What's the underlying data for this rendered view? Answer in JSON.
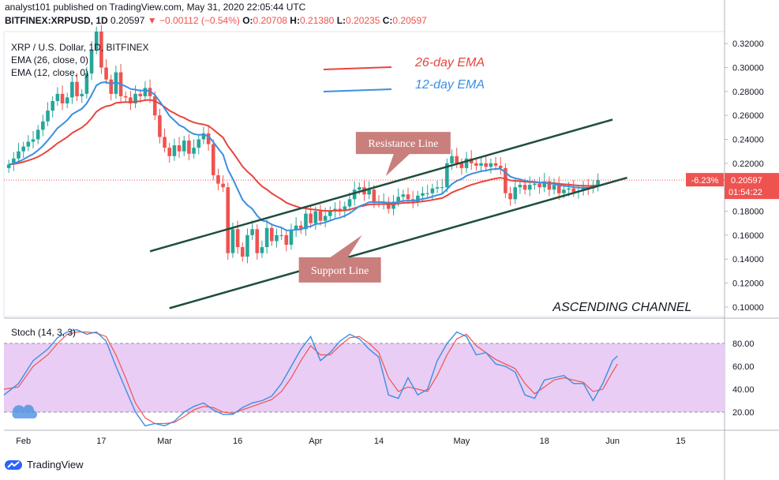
{
  "header": {
    "published": "analyst101 published on TradingView.com, May 31, 2020 22:05:44 UTC",
    "symbol": "BITFINEX:XRPUSD, 1D",
    "last": "0.20597",
    "arrow": "▼",
    "change": "−0.00112 (−0.54%)",
    "o_label": "O:",
    "o_value": "0.20708",
    "h_label": "H:",
    "h_value": "0.21380",
    "l_label": "L:",
    "l_value": "0.20235",
    "c_label": "C:",
    "c_value": "0.20597"
  },
  "footer": {
    "brand": "TradingView"
  },
  "colors": {
    "candle_up": "#26a69a",
    "candle_down": "#ef5350",
    "ema26": "#e8453c",
    "ema12": "#3b8fe0",
    "channel": "#1f4e3d",
    "stoch_k": "#3b8fe0",
    "stoch_d": "#ef5350",
    "stoch_band": "#e9cdf5",
    "label_box": "#c97f7c"
  },
  "chart_data": {
    "type": "candlestick",
    "legend": [
      "XRP / U.S. Dollar, 1D, BITFINEX",
      "EMA (26, close, 0)",
      "EMA (12, close, 0)"
    ],
    "ema_legend": [
      {
        "name": "26-day EMA",
        "color": "#e8453c"
      },
      {
        "name": "12-day EMA",
        "color": "#3b8fe0"
      }
    ],
    "price_ticks": [
      "0.32000",
      "0.30000",
      "0.28000",
      "0.26000",
      "0.24000",
      "0.22000",
      "0.20000",
      "0.18000",
      "0.16000",
      "0.14000",
      "0.12000",
      "0.10000"
    ],
    "price_range": [
      0.092,
      0.33
    ],
    "last_price_label": "0.20597",
    "last_price": 0.20597,
    "change_label": "-6.23%",
    "countdown_label": "01:54:22",
    "x_labels": [
      {
        "label": "Feb",
        "day": 4
      },
      {
        "label": "17",
        "day": 20
      },
      {
        "label": "Mar",
        "day": 33
      },
      {
        "label": "16",
        "day": 48
      },
      {
        "label": "Apr",
        "day": 64
      },
      {
        "label": "14",
        "day": 77
      },
      {
        "label": "May",
        "day": 94
      },
      {
        "label": "18",
        "day": 111
      },
      {
        "label": "Jun",
        "day": 125
      },
      {
        "label": "15",
        "day": 139
      }
    ],
    "x_range": [
      0,
      148
    ],
    "closes": [
      0.219,
      0.224,
      0.23,
      0.234,
      0.238,
      0.24,
      0.248,
      0.255,
      0.264,
      0.272,
      0.278,
      0.27,
      0.275,
      0.288,
      0.276,
      0.278,
      0.295,
      0.315,
      0.33,
      0.3,
      0.29,
      0.278,
      0.296,
      0.276,
      0.275,
      0.27,
      0.278,
      0.276,
      0.283,
      0.276,
      0.26,
      0.242,
      0.233,
      0.226,
      0.235,
      0.23,
      0.239,
      0.228,
      0.233,
      0.24,
      0.245,
      0.236,
      0.21,
      0.203,
      0.2,
      0.145,
      0.165,
      0.15,
      0.142,
      0.16,
      0.165,
      0.145,
      0.15,
      0.166,
      0.155,
      0.16,
      0.16,
      0.152,
      0.164,
      0.168,
      0.165,
      0.178,
      0.17,
      0.18,
      0.172,
      0.176,
      0.18,
      0.182,
      0.18,
      0.184,
      0.19,
      0.198,
      0.2,
      0.194,
      0.198,
      0.188,
      0.187,
      0.188,
      0.182,
      0.188,
      0.192,
      0.194,
      0.19,
      0.188,
      0.193,
      0.195,
      0.195,
      0.199,
      0.2,
      0.2,
      0.22,
      0.226,
      0.22,
      0.216,
      0.224,
      0.22,
      0.218,
      0.22,
      0.217,
      0.22,
      0.218,
      0.216,
      0.195,
      0.19,
      0.2,
      0.202,
      0.198,
      0.202,
      0.203,
      0.2,
      0.205,
      0.198,
      0.202,
      0.195,
      0.198,
      0.199,
      0.196,
      0.197,
      0.2,
      0.199,
      0.202,
      0.206
    ],
    "channel_lines": [
      {
        "name": "Resistance Line",
        "x1": 30,
        "y1": 0.1465,
        "x2": 125,
        "y2": 0.2565
      },
      {
        "name": "Support Line",
        "x1": 34,
        "y1": 0.099,
        "x2": 128,
        "y2": 0.208
      }
    ],
    "annotations": [
      {
        "text": "Resistance Line",
        "day": 82,
        "price": 0.237
      },
      {
        "text": "Support Line",
        "day": 69,
        "price": 0.131
      },
      {
        "text": "ASCENDING CHANNEL",
        "day": 127,
        "price": 0.1
      }
    ],
    "stoch": {
      "legend": "Stoch (14, 3, 3)",
      "ticks": [
        "80.00",
        "60.00",
        "40.00",
        "20.00"
      ],
      "band": [
        20,
        80
      ],
      "k_points": [
        [
          0,
          35
        ],
        [
          3,
          45
        ],
        [
          6,
          65
        ],
        [
          9,
          75
        ],
        [
          11,
          85
        ],
        [
          13,
          90
        ],
        [
          15,
          92
        ],
        [
          17,
          88
        ],
        [
          19,
          90
        ],
        [
          21,
          82
        ],
        [
          23,
          60
        ],
        [
          25,
          40
        ],
        [
          27,
          20
        ],
        [
          29,
          8
        ],
        [
          31,
          10
        ],
        [
          33,
          8
        ],
        [
          35,
          12
        ],
        [
          37,
          20
        ],
        [
          39,
          25
        ],
        [
          41,
          28
        ],
        [
          43,
          22
        ],
        [
          45,
          18
        ],
        [
          47,
          18
        ],
        [
          49,
          24
        ],
        [
          51,
          28
        ],
        [
          53,
          30
        ],
        [
          55,
          34
        ],
        [
          57,
          45
        ],
        [
          59,
          60
        ],
        [
          61,
          75
        ],
        [
          63,
          86
        ],
        [
          65,
          65
        ],
        [
          67,
          72
        ],
        [
          69,
          82
        ],
        [
          71,
          88
        ],
        [
          73,
          84
        ],
        [
          75,
          75
        ],
        [
          77,
          68
        ],
        [
          79,
          35
        ],
        [
          81,
          32
        ],
        [
          83,
          50
        ],
        [
          85,
          35
        ],
        [
          87,
          40
        ],
        [
          89,
          65
        ],
        [
          91,
          80
        ],
        [
          93,
          90
        ],
        [
          95,
          86
        ],
        [
          97,
          70
        ],
        [
          99,
          72
        ],
        [
          101,
          62
        ],
        [
          103,
          60
        ],
        [
          105,
          55
        ],
        [
          107,
          35
        ],
        [
          109,
          32
        ],
        [
          111,
          48
        ],
        [
          113,
          50
        ],
        [
          115,
          52
        ],
        [
          117,
          45
        ],
        [
          119,
          45
        ],
        [
          121,
          30
        ],
        [
          123,
          45
        ],
        [
          125,
          65
        ],
        [
          126,
          69
        ]
      ],
      "d_points": [
        [
          0,
          40
        ],
        [
          3,
          42
        ],
        [
          6,
          60
        ],
        [
          9,
          70
        ],
        [
          11,
          80
        ],
        [
          13,
          88
        ],
        [
          15,
          90
        ],
        [
          17,
          90
        ],
        [
          19,
          89
        ],
        [
          21,
          86
        ],
        [
          23,
          70
        ],
        [
          25,
          50
        ],
        [
          27,
          28
        ],
        [
          29,
          15
        ],
        [
          31,
          10
        ],
        [
          33,
          10
        ],
        [
          35,
          11
        ],
        [
          37,
          16
        ],
        [
          39,
          22
        ],
        [
          41,
          25
        ],
        [
          43,
          24
        ],
        [
          45,
          20
        ],
        [
          47,
          19
        ],
        [
          49,
          22
        ],
        [
          51,
          25
        ],
        [
          53,
          28
        ],
        [
          55,
          31
        ],
        [
          57,
          38
        ],
        [
          59,
          50
        ],
        [
          61,
          65
        ],
        [
          63,
          78
        ],
        [
          65,
          70
        ],
        [
          67,
          70
        ],
        [
          69,
          78
        ],
        [
          71,
          85
        ],
        [
          73,
          86
        ],
        [
          75,
          80
        ],
        [
          77,
          72
        ],
        [
          79,
          50
        ],
        [
          81,
          38
        ],
        [
          83,
          42
        ],
        [
          85,
          40
        ],
        [
          87,
          38
        ],
        [
          89,
          52
        ],
        [
          91,
          70
        ],
        [
          93,
          84
        ],
        [
          95,
          88
        ],
        [
          97,
          78
        ],
        [
          99,
          72
        ],
        [
          101,
          66
        ],
        [
          103,
          62
        ],
        [
          105,
          58
        ],
        [
          107,
          45
        ],
        [
          109,
          36
        ],
        [
          111,
          42
        ],
        [
          113,
          48
        ],
        [
          115,
          50
        ],
        [
          117,
          48
        ],
        [
          119,
          46
        ],
        [
          121,
          38
        ],
        [
          123,
          40
        ],
        [
          125,
          55
        ],
        [
          126,
          62
        ]
      ]
    }
  }
}
